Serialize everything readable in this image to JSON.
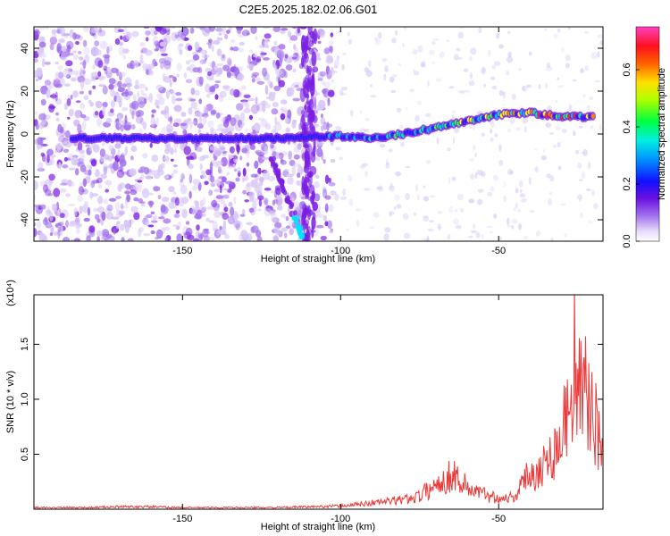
{
  "title": "C2E5.2025.182.02.06.G01",
  "chart_data": [
    {
      "type": "heatmap",
      "xlabel": "Height of straight line (km)",
      "ylabel": "Frequency (Hz)",
      "xlim": [
        -197,
        -17
      ],
      "ylim": [
        -50,
        50
      ],
      "x_ticks": [
        -150,
        -100,
        -50
      ],
      "y_ticks": [
        -40,
        -20,
        0,
        20,
        40
      ],
      "colorbar": {
        "label": "Normalized spectral amplitude",
        "range": [
          0.0,
          0.75
        ],
        "ticks": [
          0.0,
          0.2,
          0.4,
          0.6
        ],
        "tick_labels": [
          "0.0",
          "0.2",
          "0.4",
          "0.6"
        ]
      },
      "ridge": {
        "name": "",
        "points": [
          [
            -185,
            -2
          ],
          [
            -150,
            -2
          ],
          [
            -120,
            -2
          ],
          [
            -100,
            -1
          ],
          [
            -90,
            -2
          ],
          [
            -80,
            0
          ],
          [
            -70,
            3
          ],
          [
            -60,
            6
          ],
          [
            -50,
            9
          ],
          [
            -40,
            10
          ],
          [
            -30,
            8
          ],
          [
            -20,
            8
          ]
        ]
      },
      "colors": [
        "#ffffff",
        "#d8c8f6",
        "#a070ec",
        "#7a1ee2",
        "#2020ff",
        "#00e0ff",
        "#30ff30",
        "#ffff00",
        "#ff2020",
        "#ff40c0"
      ]
    },
    {
      "type": "line",
      "xlabel": "Height of straight line (km)",
      "ylabel": "SNR (10 * v/v)",
      "y_multiplier": "(x10⁴)",
      "xlim": [
        -197,
        -17
      ],
      "ylim": [
        0,
        1.95
      ],
      "x_ticks": [
        -150,
        -100,
        -50
      ],
      "y_ticks": [
        0.5,
        1.0,
        1.5
      ],
      "y_tick_labels": [
        "0.5",
        "1.0",
        "1.5"
      ],
      "color": "#e83a3a",
      "series": [
        {
          "name": "",
          "x": [
            -197,
            -190,
            -180,
            -170,
            -160,
            -150,
            -140,
            -130,
            -120,
            -110,
            -100,
            -95,
            -90,
            -85,
            -80,
            -75,
            -70,
            -67,
            -64,
            -62,
            -60,
            -57,
            -54,
            -50,
            -46,
            -44,
            -42,
            -40,
            -38,
            -35,
            -32,
            -30,
            -28,
            -26,
            -24,
            -22,
            -20,
            -18,
            -17
          ],
          "values": [
            0.02,
            0.02,
            0.02,
            0.03,
            0.03,
            0.02,
            0.02,
            0.02,
            0.02,
            0.03,
            0.04,
            0.06,
            0.08,
            0.1,
            0.12,
            0.17,
            0.3,
            0.38,
            0.44,
            0.35,
            0.28,
            0.22,
            0.18,
            0.14,
            0.15,
            0.2,
            0.35,
            0.5,
            0.45,
            0.6,
            0.75,
            1.0,
            1.2,
            1.95,
            1.4,
            1.45,
            1.2,
            0.85,
            0.75
          ]
        }
      ]
    }
  ]
}
